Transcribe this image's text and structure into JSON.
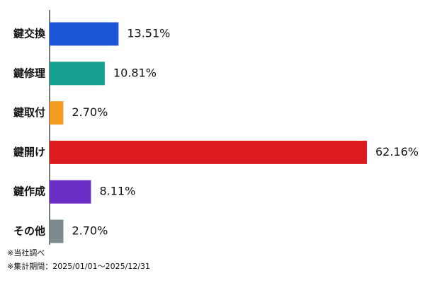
{
  "chart_data": {
    "type": "bar",
    "orientation": "horizontal",
    "categories": [
      "鍵交換",
      "鍵修理",
      "鍵取付",
      "鍵開け",
      "鍵作成",
      "その他"
    ],
    "values": [
      13.51,
      10.81,
      2.7,
      62.16,
      8.11,
      2.7
    ],
    "value_labels": [
      "13.51%",
      "10.81%",
      "2.70%",
      "62.16%",
      "8.11%",
      "2.70%"
    ],
    "colors": [
      "#1b55d8",
      "#16a08f",
      "#f29d22",
      "#dd1c1f",
      "#6a2dc6",
      "#7d8a8c"
    ],
    "notes": [
      "※当社調べ",
      "※集計期間：2025/01/01～2025/12/31"
    ]
  }
}
